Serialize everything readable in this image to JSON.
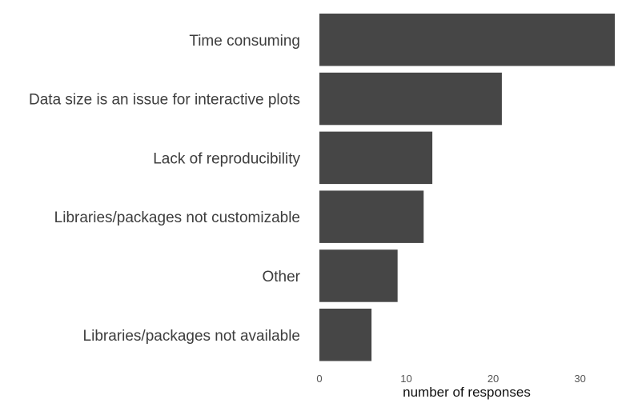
{
  "chart_data": {
    "type": "bar",
    "orientation": "horizontal",
    "categories": [
      "Time consuming",
      "Data size is an issue for interactive plots",
      "Lack of reproducibility",
      "Libraries/packages not customizable",
      "Other",
      "Libraries/packages not available"
    ],
    "values": [
      34,
      21,
      13,
      12,
      9,
      6
    ],
    "xlabel": "number of responses",
    "xticks": [
      0,
      10,
      20,
      30
    ],
    "xlim": [
      0,
      34
    ],
    "bar_color": "#464646",
    "grid": false,
    "legend": "none"
  }
}
